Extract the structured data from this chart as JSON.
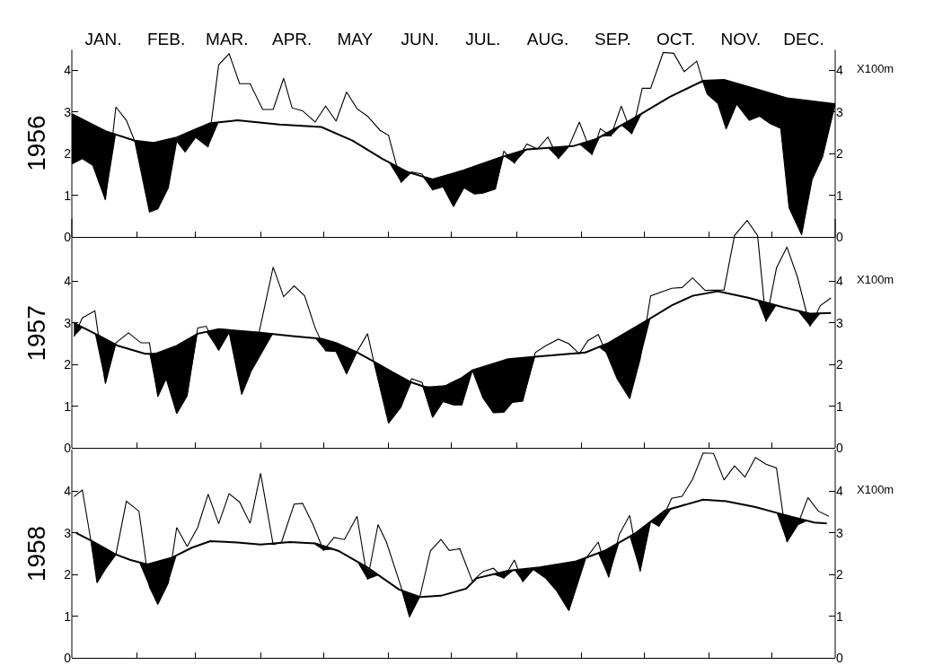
{
  "chart_data": [
    {
      "type": "line",
      "ylabel": "1956",
      "y2label": "X100m",
      "xlim": [
        "--01-01",
        "--12-31"
      ],
      "xticks": [
        {
          "value": "--01-01",
          "label": null
        },
        {
          "value": "--01-16",
          "label": "JAN."
        },
        {
          "value": "--02-01",
          "label": null
        },
        {
          "value": "--02-15",
          "label": "FEB."
        },
        {
          "value": "--03-01",
          "label": null
        },
        {
          "value": "--03-16",
          "label": "MAR."
        },
        {
          "value": "--04-01",
          "label": null
        },
        {
          "value": "--04-16",
          "label": "APR."
        },
        {
          "value": "--05-01",
          "label": null
        },
        {
          "value": "--05-16",
          "label": "MAY"
        },
        {
          "value": "--06-01",
          "label": null
        },
        {
          "value": "--06-16",
          "label": "JUN."
        },
        {
          "value": "--07-01",
          "label": null
        },
        {
          "value": "--07-16",
          "label": "JUL."
        },
        {
          "value": "--08-01",
          "label": null
        },
        {
          "value": "--08-16",
          "label": "AUG."
        },
        {
          "value": "--09-01",
          "label": null
        },
        {
          "value": "--09-16",
          "label": "SEP."
        },
        {
          "value": "--10-01",
          "label": null
        },
        {
          "value": "--10-16",
          "label": "OCT."
        },
        {
          "value": "--11-01",
          "label": null
        },
        {
          "value": "--11-16",
          "label": "NOV."
        },
        {
          "value": "--12-01",
          "label": null
        },
        {
          "value": "--12-16",
          "label": "DEC."
        },
        {
          "value": "--12-31",
          "label": null
        }
      ],
      "ylim": [
        0,
        4.5
      ],
      "yticks": [
        0,
        1,
        2,
        3,
        4
      ],
      "y2lim": [
        0,
        4.5
      ],
      "y2ticks": [
        0,
        1,
        2,
        3,
        4
      ],
      "grid": false,
      "marker": "none",
      "line_style": "solid",
      "series": [
        {
          "color": "#000000",
          "x": [
            "--01-01",
            "--01-06",
            "--01-11",
            "--01-17",
            "--01-22",
            "--01-27",
            "--01-31",
            "--02-07",
            "--02-11",
            "--02-16",
            "--02-20",
            "--02-24",
            "--03-01",
            "--03-07",
            "--03-12",
            "--03-17",
            "--03-22",
            "--03-27",
            "--04-02",
            "--04-07",
            "--04-12",
            "--04-16",
            "--04-21",
            "--04-27",
            "--05-02",
            "--05-07",
            "--05-12",
            "--05-17",
            "--05-22",
            "--05-28",
            "--06-01",
            "--06-07",
            "--06-12",
            "--06-17",
            "--06-22",
            "--06-27",
            "--07-02",
            "--07-07",
            "--07-12",
            "--07-16",
            "--07-22",
            "--07-26",
            "--07-31",
            "--08-06",
            "--08-11",
            "--08-16",
            "--08-21",
            "--08-26",
            "--08-31",
            "--09-06",
            "--09-10",
            "--09-15",
            "--09-20",
            "--09-25",
            "--09-30",
            "--10-04",
            "--10-10",
            "--10-15",
            "--10-20",
            "--10-26",
            "--10-29",
            "--10-31",
            "--11-05",
            "--11-09",
            "--11-14",
            "--11-20",
            "--11-25",
            "--11-30",
            "--12-05",
            "--12-09",
            "--12-15",
            "--12-20",
            "--12-25",
            "--12-31"
          ],
          "values": [
            1.75,
            1.88,
            1.72,
            0.89,
            3.12,
            2.8,
            2.3,
            0.6,
            0.67,
            1.18,
            2.3,
            2.04,
            2.39,
            2.16,
            4.13,
            4.4,
            3.68,
            3.68,
            3.06,
            3.06,
            3.81,
            3.1,
            3.03,
            2.76,
            3.14,
            2.78,
            3.48,
            3.08,
            2.9,
            2.56,
            2.44,
            1.31,
            1.56,
            1.51,
            1.13,
            1.2,
            0.73,
            1.18,
            1.03,
            1.05,
            1.15,
            2.06,
            1.77,
            2.23,
            2.11,
            2.4,
            1.88,
            2.17,
            2.76,
            1.97,
            2.6,
            2.42,
            3.14,
            2.47,
            3.57,
            3.57,
            4.43,
            4.41,
            3.97,
            4.22,
            3.71,
            3.43,
            3.21,
            2.59,
            3.19,
            2.8,
            2.9,
            2.72,
            2.61,
            0.7,
            0.05,
            1.38,
            1.92,
            3.19
          ],
          "lower": [
            1.75,
            1.88,
            1.72,
            0.89,
            2.45,
            2.37,
            2.3,
            0.6,
            0.67,
            1.18,
            2.3,
            2.04,
            2.39,
            2.16,
            2.75,
            null,
            null,
            null,
            null,
            null,
            null,
            null,
            null,
            null,
            null,
            null,
            null,
            null,
            null,
            null,
            1.8,
            1.31,
            1.54,
            1.46,
            1.13,
            1.2,
            0.73,
            1.18,
            1.03,
            1.05,
            1.15,
            1.94,
            1.77,
            2.1,
            2.11,
            2.14,
            1.88,
            2.17,
            2.22,
            1.97,
            2.41,
            2.42,
            2.68,
            2.47,
            2.98,
            null,
            null,
            null,
            null,
            3.67,
            3.71,
            3.43,
            3.21,
            2.59,
            3.19,
            2.8,
            2.9,
            2.72,
            2.61,
            0.7,
            0.05,
            1.38,
            1.92,
            3.19
          ],
          "upper": [
            2.95,
            2.81,
            2.68,
            2.54,
            2.45,
            2.37,
            2.31,
            2.27,
            2.28,
            2.34,
            2.39,
            2.49,
            2.6,
            2.71,
            2.75,
            null,
            null,
            null,
            null,
            null,
            null,
            null,
            null,
            null,
            null,
            null,
            null,
            null,
            null,
            null,
            1.8,
            1.64,
            1.54,
            1.46,
            1.38,
            1.45,
            1.52,
            1.6,
            1.68,
            1.77,
            1.87,
            1.94,
            2.01,
            2.1,
            2.12,
            2.14,
            2.15,
            2.17,
            2.22,
            2.31,
            2.41,
            2.54,
            2.68,
            2.82,
            2.98,
            null,
            null,
            null,
            null,
            3.67,
            3.75,
            3.75,
            3.76,
            3.75,
            3.68,
            3.6,
            3.52,
            3.45,
            3.38,
            3.32,
            3.28,
            3.25,
            3.22,
            3.19
          ]
        },
        {
          "color": "#000000",
          "x": [
            "--01-01",
            "--01-17",
            "--01-31",
            "--02-09",
            "--02-20",
            "--03-08",
            "--03-21",
            "--04-10",
            "--04-30",
            "--05-15",
            "--05-29",
            "--06-10",
            "--06-22",
            "--07-07",
            "--07-25",
            "--08-06",
            "--08-28",
            "--09-08",
            "--09-25",
            "--10-13",
            "--10-29",
            "--11-08",
            "--11-22",
            "--12-08",
            "--12-31"
          ],
          "values": [
            2.95,
            2.54,
            2.31,
            2.26,
            2.39,
            2.73,
            2.8,
            2.7,
            2.64,
            2.31,
            1.88,
            1.56,
            1.38,
            1.6,
            1.92,
            2.1,
            2.18,
            2.35,
            2.82,
            3.36,
            3.75,
            3.77,
            3.57,
            3.33,
            3.19
          ]
        }
      ]
    },
    {
      "type": "line",
      "ylabel": "1957",
      "y2label": "X100m",
      "tick_labels": "y",
      "xlim": [
        "--01-01",
        "--12-31"
      ],
      "xticks": [
        {
          "value": "--01-01",
          "label": null
        },
        {
          "value": "--02-01",
          "label": null
        },
        {
          "value": "--03-01",
          "label": null
        },
        {
          "value": "--04-01",
          "label": null
        },
        {
          "value": "--05-01",
          "label": null
        },
        {
          "value": "--06-01",
          "label": null
        },
        {
          "value": "--07-01",
          "label": null
        },
        {
          "value": "--08-01",
          "label": null
        },
        {
          "value": "--09-01",
          "label": null
        },
        {
          "value": "--10-01",
          "label": null
        },
        {
          "value": "--11-01",
          "label": null
        },
        {
          "value": "--12-01",
          "label": null
        },
        {
          "value": "--12-31",
          "label": null
        }
      ],
      "ylim": [
        0,
        5.5
      ],
      "yticks": [
        0,
        1,
        2,
        3,
        4
      ],
      "y2lim": [
        0,
        5.5
      ],
      "y2ticks": [
        0,
        1,
        2,
        3,
        4
      ],
      "grid": false,
      "marker": "none",
      "line_style": "solid",
      "series": [
        {
          "color": "#000000",
          "x": [
            "--01-02",
            "--01-06",
            "--01-12",
            "--01-17",
            "--01-22",
            "--01-28",
            "--02-03",
            "--02-07",
            "--02-11",
            "--02-15",
            "--02-20",
            "--02-25",
            "--03-02",
            "--03-06",
            "--03-12",
            "--03-17",
            "--03-23",
            "--03-27",
            "--04-07",
            "--04-12",
            "--04-17",
            "--04-22",
            "--04-27",
            "--05-02",
            "--05-07",
            "--05-12",
            "--05-17",
            "--05-22",
            "--05-25",
            "--06-01",
            "--06-07",
            "--06-12",
            "--06-17",
            "--06-22",
            "--06-27",
            "--07-02",
            "--07-06",
            "--07-11",
            "--07-16",
            "--07-21",
            "--07-26",
            "--07-30",
            "--08-04",
            "--08-10",
            "--08-15",
            "--08-21",
            "--08-26",
            "--08-31",
            "--09-04",
            "--09-09",
            "--09-13",
            "--09-18",
            "--09-24",
            "--09-29",
            "--10-04",
            "--10-14",
            "--10-19",
            "--10-24",
            "--10-30",
            "--11-08",
            "--11-13",
            "--11-19",
            "--11-24",
            "--11-28",
            "--12-03",
            "--12-08",
            "--12-13",
            "--12-19",
            "--12-24",
            "--12-29"
          ],
          "values": [
            2.67,
            3.12,
            3.29,
            1.54,
            2.52,
            2.76,
            2.52,
            2.52,
            1.23,
            1.66,
            0.82,
            1.25,
            2.88,
            2.92,
            2.34,
            2.77,
            1.28,
            1.77,
            4.34,
            3.63,
            3.89,
            3.65,
            2.88,
            2.33,
            2.31,
            1.77,
            2.31,
            2.74,
            2.06,
            0.59,
            0.98,
            1.66,
            1.57,
            0.73,
            1.11,
            1.03,
            1.03,
            1.86,
            1.2,
            0.84,
            0.85,
            1.09,
            1.12,
            2.29,
            2.45,
            2.61,
            2.5,
            2.26,
            2.57,
            2.72,
            2.27,
            1.66,
            1.18,
            2.13,
            3.65,
            3.83,
            3.85,
            4.08,
            3.78,
            3.79,
            5.1,
            5.46,
            5.1,
            3.03,
            4.32,
            4.82,
            4.1,
            2.92,
            3.42,
            3.6
          ],
          "lower": [
            2.67,
            2.88,
            2.74,
            1.54,
            2.47,
            null,
            null,
            2.26,
            1.23,
            1.66,
            0.82,
            1.25,
            2.74,
            2.79,
            2.34,
            2.77,
            1.28,
            1.77,
            2.74,
            null,
            null,
            null,
            2.63,
            2.33,
            2.31,
            1.77,
            2.29,
            2.15,
            2.06,
            0.59,
            0.98,
            1.57,
            1.49,
            0.73,
            1.11,
            1.03,
            1.03,
            1.86,
            1.2,
            0.84,
            0.85,
            1.09,
            1.12,
            2.19,
            null,
            null,
            2.26,
            2.26,
            2.33,
            2.43,
            2.27,
            1.66,
            1.18,
            2.13,
            3.12,
            null,
            null,
            null,
            null,
            null,
            null,
            null,
            3.54,
            3.03,
            3.42,
            null,
            3.29,
            2.92,
            3.23,
            null
          ],
          "upper": [
            3.0,
            2.88,
            2.74,
            2.6,
            2.47,
            null,
            null,
            2.26,
            2.28,
            2.36,
            2.45,
            2.6,
            2.74,
            2.79,
            2.85,
            2.83,
            2.8,
            2.79,
            2.74,
            null,
            null,
            null,
            2.63,
            2.59,
            2.52,
            2.41,
            2.29,
            2.15,
            2.07,
            1.88,
            1.71,
            1.57,
            1.49,
            1.46,
            1.48,
            1.57,
            1.68,
            1.86,
            1.94,
            2.01,
            2.1,
            2.14,
            2.16,
            2.19,
            null,
            null,
            2.26,
            2.28,
            2.33,
            2.43,
            2.5,
            2.65,
            2.81,
            2.96,
            3.12,
            null,
            null,
            null,
            null,
            null,
            null,
            null,
            3.54,
            3.49,
            3.42,
            null,
            3.29,
            3.22,
            3.23,
            null
          ]
        },
        {
          "color": "#000000",
          "x": [
            "--01-02",
            "--01-14",
            "--01-23",
            "--02-05",
            "--02-10",
            "--02-20",
            "--03-02",
            "--03-12",
            "--03-31",
            "--04-15",
            "--04-30",
            "--05-07",
            "--05-17",
            "--05-25",
            "--06-02",
            "--06-11",
            "--06-19",
            "--06-28",
            "--07-06",
            "--07-11",
            "--07-28",
            "--08-10",
            "--09-03",
            "--09-14",
            "--10-02",
            "--10-14",
            "--10-24",
            "--11-05",
            "--11-20",
            "--12-06",
            "--12-19",
            "--12-29"
          ],
          "values": [
            3.0,
            2.69,
            2.45,
            2.26,
            2.26,
            2.45,
            2.74,
            2.85,
            2.77,
            2.69,
            2.62,
            2.52,
            2.29,
            2.07,
            1.84,
            1.59,
            1.45,
            1.48,
            1.68,
            1.86,
            2.13,
            2.19,
            2.29,
            2.52,
            3.05,
            3.42,
            3.65,
            3.76,
            3.6,
            3.38,
            3.22,
            3.24
          ]
        }
      ]
    },
    {
      "type": "line",
      "ylabel": "1958",
      "y2label": "X100m",
      "tick_labels": "y",
      "xlim": [
        "--01-01",
        "--12-31"
      ],
      "xticks": [
        {
          "value": "--01-01",
          "label": null
        },
        {
          "value": "--02-01",
          "label": null
        },
        {
          "value": "--03-01",
          "label": null
        },
        {
          "value": "--04-01",
          "label": null
        },
        {
          "value": "--05-01",
          "label": null
        },
        {
          "value": "--06-01",
          "label": null
        },
        {
          "value": "--07-01",
          "label": null
        },
        {
          "value": "--08-01",
          "label": null
        },
        {
          "value": "--09-01",
          "label": null
        },
        {
          "value": "--10-01",
          "label": null
        },
        {
          "value": "--11-01",
          "label": null
        },
        {
          "value": "--12-01",
          "label": null
        },
        {
          "value": "--12-31",
          "label": null
        }
      ],
      "ylim": [
        0,
        5
      ],
      "yticks": [
        0,
        1,
        2,
        3,
        4
      ],
      "y2lim": [
        0,
        5
      ],
      "y2ticks": [
        0,
        1,
        2,
        3,
        4
      ],
      "grid": false,
      "marker": "none",
      "line_style": "solid",
      "series": [
        {
          "color": "#000000",
          "x": [
            "--01-02",
            "--01-06",
            "--01-10",
            "--01-13",
            "--01-17",
            "--01-22",
            "--01-27",
            "--02-02",
            "--02-07",
            "--02-11",
            "--02-16",
            "--02-20",
            "--02-25",
            "--03-02",
            "--03-07",
            "--03-12",
            "--03-17",
            "--03-22",
            "--03-27",
            "--04-01",
            "--04-07",
            "--04-11",
            "--04-17",
            "--04-21",
            "--04-26",
            "--05-01",
            "--05-06",
            "--05-11",
            "--05-17",
            "--05-22",
            "--05-27",
            "--05-31",
            "--06-07",
            "--06-11",
            "--06-16",
            "--06-21",
            "--06-26",
            "--06-30",
            "--07-05",
            "--07-11",
            "--07-16",
            "--07-21",
            "--07-26",
            "--07-31",
            "--08-04",
            "--08-09",
            "--08-15",
            "--08-20",
            "--08-26",
            "--09-03",
            "--09-09",
            "--09-14",
            "--09-19",
            "--09-24",
            "--09-29",
            "--10-04",
            "--10-08",
            "--10-14",
            "--10-19",
            "--10-24",
            "--10-29",
            "--11-03",
            "--11-08",
            "--11-13",
            "--11-18",
            "--11-23",
            "--11-28",
            "--12-03",
            "--12-08",
            "--12-13",
            "--12-18",
            "--12-23",
            "--12-28"
          ],
          "values": [
            3.87,
            4.03,
            2.84,
            1.8,
            2.13,
            2.48,
            3.76,
            3.52,
            1.7,
            1.28,
            1.8,
            3.13,
            2.67,
            3.13,
            3.93,
            3.22,
            3.94,
            3.74,
            3.23,
            4.43,
            2.72,
            2.78,
            3.69,
            3.71,
            3.2,
            2.58,
            2.89,
            2.84,
            3.4,
            1.88,
            3.2,
            2.78,
            1.7,
            0.98,
            1.48,
            2.57,
            2.84,
            2.58,
            2.62,
            1.84,
            2.07,
            2.15,
            1.91,
            2.35,
            1.83,
            2.12,
            1.91,
            1.62,
            1.13,
            2.38,
            2.78,
            1.93,
            2.96,
            3.42,
            2.07,
            3.28,
            3.16,
            3.83,
            3.88,
            4.29,
            4.92,
            4.91,
            4.27,
            4.61,
            4.34,
            4.81,
            4.65,
            4.56,
            2.78,
            3.18,
            3.85,
            3.52,
            3.4
          ],
          "lower": [
            null,
            null,
            2.82,
            1.8,
            2.13,
            2.48,
            null,
            2.3,
            1.7,
            1.28,
            1.8,
            2.46,
            null,
            null,
            null,
            null,
            null,
            null,
            null,
            2.72,
            2.72,
            2.76,
            null,
            null,
            2.75,
            2.58,
            2.6,
            null,
            2.31,
            1.88,
            1.98,
            null,
            1.64,
            0.98,
            1.46,
            null,
            null,
            null,
            null,
            null,
            null,
            2.0,
            1.91,
            2.11,
            1.83,
            2.12,
            1.91,
            1.62,
            1.13,
            2.38,
            2.5,
            1.93,
            2.76,
            2.91,
            2.07,
            3.26,
            3.16,
            3.58,
            null,
            null,
            null,
            null,
            null,
            null,
            null,
            null,
            null,
            3.49,
            2.78,
            3.18,
            3.29,
            null,
            null
          ],
          "upper": [
            null,
            null,
            2.82,
            2.74,
            2.62,
            2.48,
            null,
            2.3,
            2.25,
            2.32,
            2.38,
            2.46,
            null,
            null,
            null,
            null,
            null,
            null,
            null,
            2.72,
            2.74,
            2.76,
            null,
            null,
            2.75,
            2.68,
            2.6,
            null,
            2.31,
            2.14,
            1.98,
            null,
            1.64,
            1.55,
            1.46,
            null,
            null,
            null,
            null,
            null,
            null,
            2.0,
            2.06,
            2.11,
            2.13,
            2.16,
            2.19,
            2.23,
            2.28,
            2.4,
            2.5,
            2.62,
            2.76,
            2.91,
            3.08,
            3.26,
            3.44,
            3.58,
            null,
            null,
            null,
            null,
            null,
            null,
            null,
            null,
            null,
            3.49,
            3.43,
            3.35,
            3.29,
            null,
            null
          ]
        },
        {
          "color": "#000000",
          "x": [
            "--01-03",
            "--01-10",
            "--01-22",
            "--01-29",
            "--02-06",
            "--02-18",
            "--02-27",
            "--03-08",
            "--03-21",
            "--04-01",
            "--04-15",
            "--04-27",
            "--05-08",
            "--05-22",
            "--06-06",
            "--06-16",
            "--06-26",
            "--07-08",
            "--07-13",
            "--07-28",
            "--08-12",
            "--08-29",
            "--09-12",
            "--09-27",
            "--10-11",
            "--10-29",
            "--11-09",
            "--11-23",
            "--12-07",
            "--12-21",
            "--12-27"
          ],
          "values": [
            3.0,
            2.82,
            2.48,
            2.35,
            2.24,
            2.41,
            2.64,
            2.8,
            2.77,
            2.72,
            2.78,
            2.75,
            2.57,
            2.17,
            1.64,
            1.46,
            1.49,
            1.66,
            1.91,
            2.09,
            2.17,
            2.31,
            2.57,
            3.0,
            3.54,
            3.8,
            3.76,
            3.62,
            3.43,
            3.25,
            3.23
          ]
        }
      ]
    }
  ]
}
